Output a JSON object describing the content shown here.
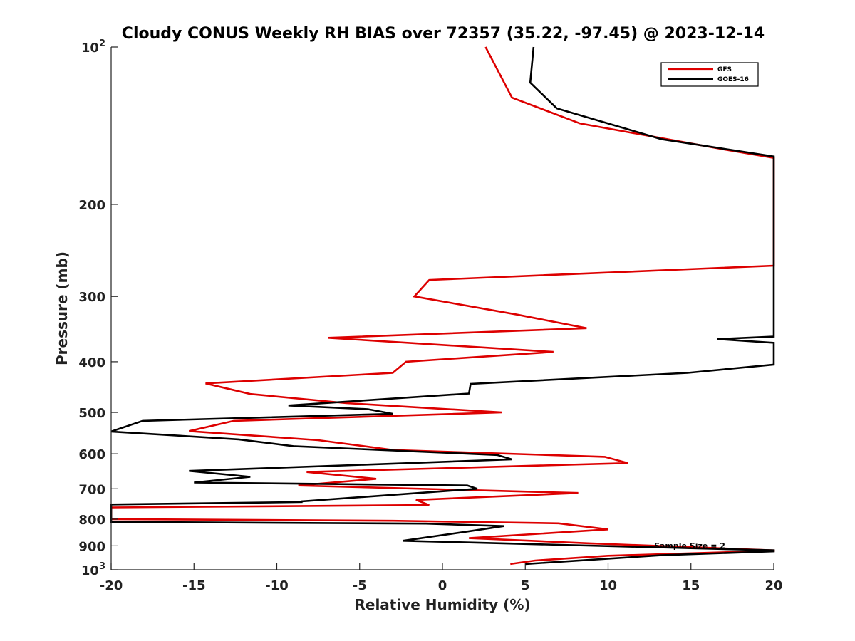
{
  "chart_data": {
    "type": "line",
    "title": "Cloudy CONUS Weekly RH BIAS over 72357 (35.22, -97.45) @ 2023-12-14",
    "xlabel": "Relative Humidity (%)",
    "ylabel": "Pressure (mb)",
    "xlim": [
      -20,
      20
    ],
    "ylim": [
      1000,
      100
    ],
    "y_scale": "log",
    "y_reversed": true,
    "grid": false,
    "legend_position": "top-right",
    "x_ticks": [
      -20,
      -15,
      -10,
      -5,
      0,
      5,
      10,
      15,
      20
    ],
    "x_tick_labels": [
      "-20",
      "-15",
      "-10",
      "-5",
      "0",
      "5",
      "10",
      "15",
      "20"
    ],
    "y_ticks": [
      100,
      200,
      300,
      400,
      500,
      600,
      700,
      800,
      900,
      1000
    ],
    "y_tick_labels": [
      {
        "base": "10",
        "exp": "2"
      },
      {
        "base": "200",
        "exp": ""
      },
      {
        "base": "300",
        "exp": ""
      },
      {
        "base": "400",
        "exp": ""
      },
      {
        "base": "500",
        "exp": ""
      },
      {
        "base": "600",
        "exp": ""
      },
      {
        "base": "700",
        "exp": ""
      },
      {
        "base": "800",
        "exp": ""
      },
      {
        "base": "900",
        "exp": ""
      },
      {
        "base": "10",
        "exp": "3"
      }
    ],
    "annotation": "Sample Size = 2",
    "series": [
      {
        "name": "GFS",
        "color": "#dd0000",
        "points": [
          [
            2.6,
            100
          ],
          [
            4.2,
            125
          ],
          [
            8.3,
            140
          ],
          [
            17,
            157
          ],
          [
            20,
            163
          ],
          [
            20,
            262
          ],
          [
            -0.8,
            279
          ],
          [
            -1.7,
            300
          ],
          [
            4.5,
            325
          ],
          [
            8.7,
            345
          ],
          [
            -6.9,
            360
          ],
          [
            6.7,
            383
          ],
          [
            -2.2,
            400
          ],
          [
            -3,
            420
          ],
          [
            -14.3,
            440
          ],
          [
            -11.6,
            461
          ],
          [
            -5.8,
            480
          ],
          [
            3.6,
            500
          ],
          [
            -12.6,
            519
          ],
          [
            -15.3,
            543
          ],
          [
            -7.5,
            565
          ],
          [
            -3,
            590
          ],
          [
            9.8,
            608
          ],
          [
            11.2,
            625
          ],
          [
            -8.2,
            650
          ],
          [
            -4,
            670
          ],
          [
            -8.7,
            690
          ],
          [
            8.2,
            713
          ],
          [
            -1.6,
            735
          ],
          [
            -0.8,
            752
          ],
          [
            -20,
            760
          ],
          [
            -20,
            800
          ],
          [
            -3,
            806
          ],
          [
            7,
            815
          ],
          [
            10,
            837
          ],
          [
            1.6,
            870
          ],
          [
            8.9,
            890
          ],
          [
            20,
            918
          ],
          [
            20,
            920
          ],
          [
            10,
            940
          ],
          [
            5.6,
            960
          ],
          [
            4.1,
            975
          ]
        ]
      },
      {
        "name": "GOES-16",
        "color": "#000000",
        "points": [
          [
            5.5,
            100
          ],
          [
            5.3,
            117
          ],
          [
            6.9,
            131
          ],
          [
            13.2,
            150
          ],
          [
            20,
            162
          ],
          [
            20,
            358
          ],
          [
            16.6,
            362
          ],
          [
            20,
            368
          ],
          [
            20,
            405
          ],
          [
            14.8,
            420
          ],
          [
            1.7,
            441
          ],
          [
            1.6,
            460
          ],
          [
            -9.3,
            485
          ],
          [
            -4.5,
            493
          ],
          [
            -3,
            503
          ],
          [
            -18.1,
            519
          ],
          [
            -20,
            544
          ],
          [
            -12.3,
            563
          ],
          [
            -9,
            580
          ],
          [
            3.3,
            603
          ],
          [
            4.2,
            615
          ],
          [
            -15.3,
            647
          ],
          [
            -11.6,
            664
          ],
          [
            -15,
            681
          ],
          [
            1.5,
            690
          ],
          [
            2.1,
            700
          ],
          [
            -8.5,
            740
          ],
          [
            -8.5,
            742
          ],
          [
            -20,
            750
          ],
          [
            -20,
            810
          ],
          [
            -1,
            816
          ],
          [
            3.7,
            825
          ],
          [
            1.5,
            845
          ],
          [
            -2.4,
            880
          ],
          [
            20,
            918
          ],
          [
            20,
            922
          ],
          [
            13.2,
            938
          ],
          [
            5,
            975
          ]
        ]
      }
    ]
  }
}
